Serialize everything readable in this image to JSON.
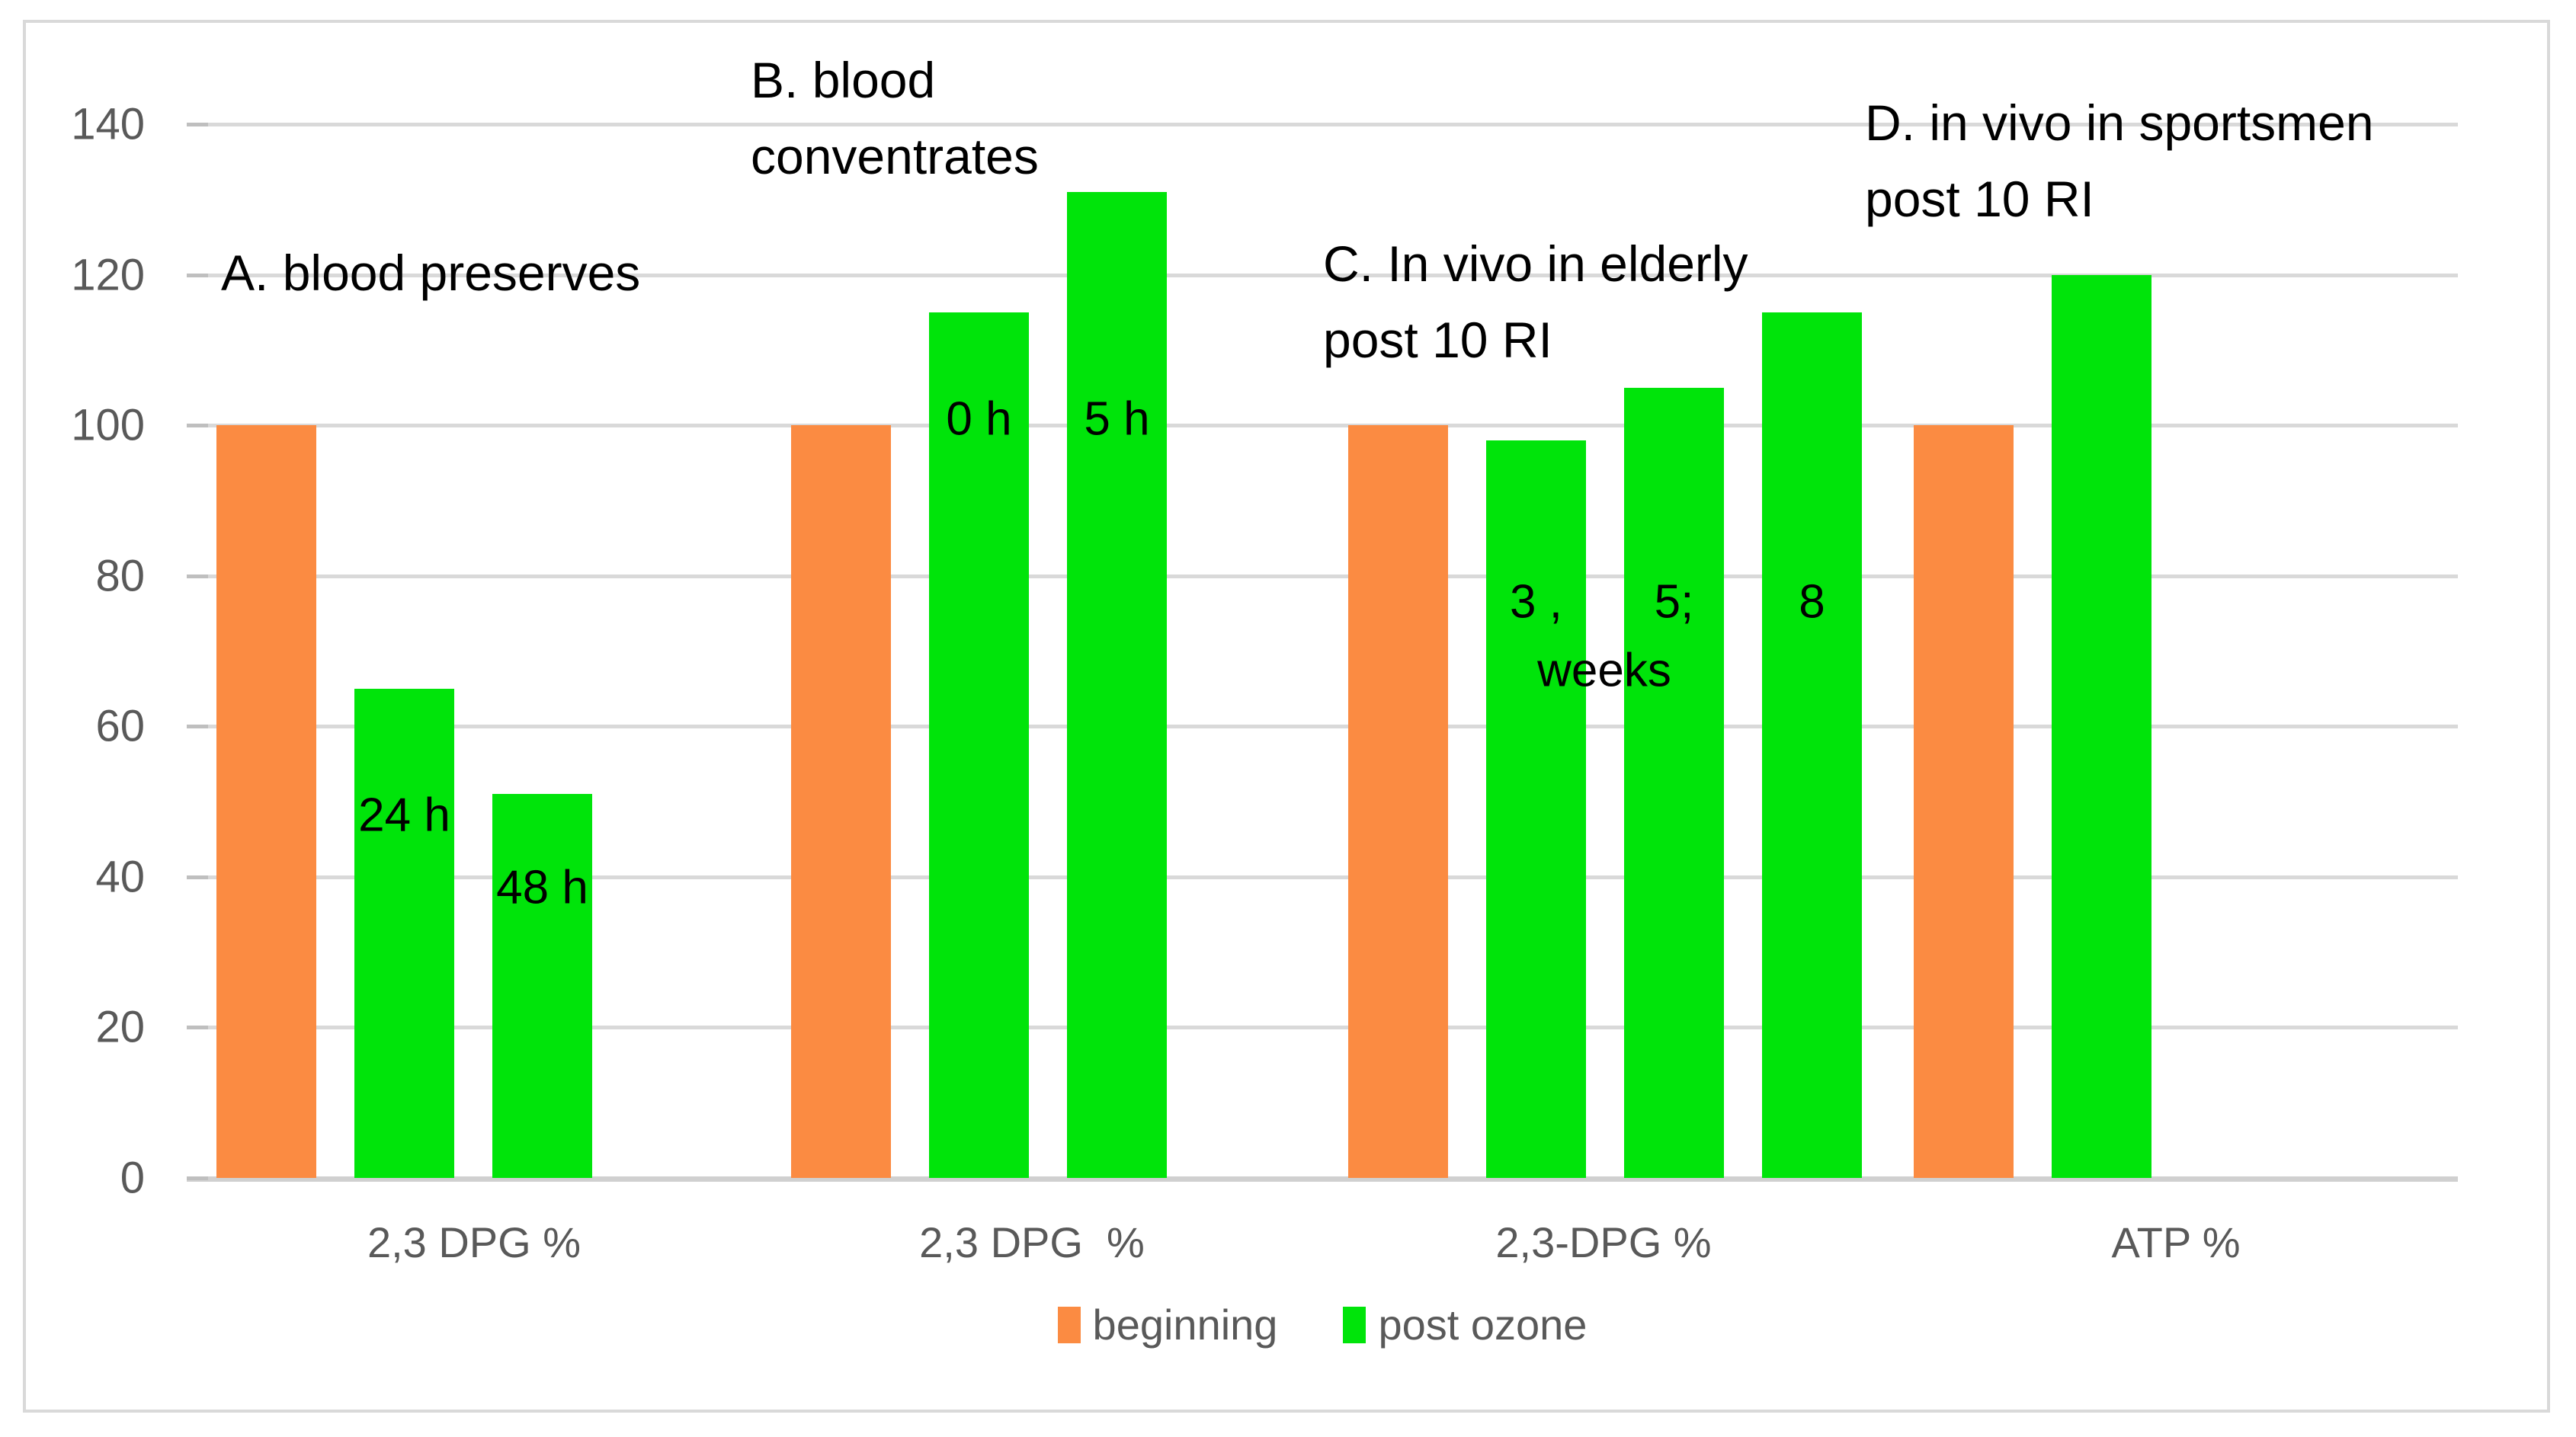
{
  "chart_data": {
    "type": "bar",
    "title": "",
    "xlabel": "",
    "ylabel": "",
    "ylim": [
      0,
      140
    ],
    "yticks": [
      0,
      20,
      40,
      60,
      80,
      100,
      120,
      140
    ],
    "grid": "horizontal",
    "legend": {
      "position": "bottom",
      "entries": [
        {
          "name": "beginning",
          "color": "#FB8B42"
        },
        {
          "name": "post ozone",
          "color": "#00E40A"
        }
      ]
    },
    "categories": [
      "2,3 DPG %",
      "2,3 DPG  %",
      "2,3-DPG %",
      "ATP %"
    ],
    "groups": [
      {
        "category": "2,3 DPG %",
        "annotation": [
          "A. blood preserves"
        ],
        "bars": [
          {
            "series": "beginning",
            "value": 100,
            "label": ""
          },
          {
            "series": "post ozone",
            "value": 65,
            "label": "24 h"
          },
          {
            "series": "post ozone",
            "value": 51,
            "label": "48 h"
          }
        ]
      },
      {
        "category": "2,3 DPG  %",
        "annotation": [
          "B. blood",
          "conventrates"
        ],
        "bars": [
          {
            "series": "beginning",
            "value": 100,
            "label": ""
          },
          {
            "series": "post ozone",
            "value": 115,
            "label": "0 h"
          },
          {
            "series": "post ozone",
            "value": 131,
            "label": "5 h"
          }
        ]
      },
      {
        "category": "2,3-DPG %",
        "annotation": [
          "C. In vivo in elderly",
          "post 10 RI"
        ],
        "extra_label": "weeks",
        "bars": [
          {
            "series": "beginning",
            "value": 100,
            "label": ""
          },
          {
            "series": "post ozone",
            "value": 98,
            "label": "3 ,"
          },
          {
            "series": "post ozone",
            "value": 105,
            "label": "5;"
          },
          {
            "series": "post ozone",
            "value": 115,
            "label": "8"
          }
        ]
      },
      {
        "category": "ATP %",
        "annotation": [
          "D. in vivo in sportsmen",
          "post 10 RI"
        ],
        "bars": [
          {
            "series": "beginning",
            "value": 100,
            "label": ""
          },
          {
            "series": "post ozone",
            "value": 120,
            "label": ""
          }
        ]
      }
    ],
    "colors": {
      "beginning": "#FB8B42",
      "post_ozone": "#00E40A",
      "gridline": "#D9D9D9",
      "axis_text": "#595959",
      "annotation_text": "#000000"
    }
  }
}
